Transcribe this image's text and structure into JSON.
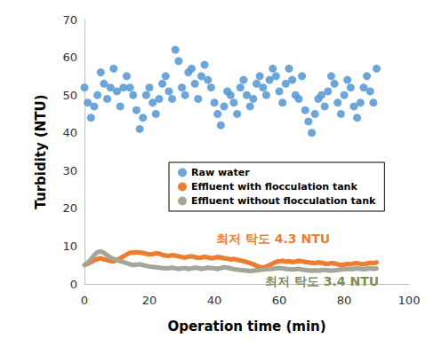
{
  "chart_data": {
    "type": "scatter",
    "x_label": "Operation time (min)",
    "y_label": "Turbidity (NTU)",
    "x": [
      0,
      1,
      2,
      3,
      4,
      5,
      6,
      7,
      8,
      9,
      10,
      11,
      12,
      13,
      14,
      15,
      16,
      17,
      18,
      19,
      20,
      21,
      22,
      23,
      24,
      25,
      26,
      27,
      28,
      29,
      30,
      31,
      32,
      33,
      34,
      35,
      36,
      37,
      38,
      39,
      40,
      41,
      42,
      43,
      44,
      45,
      46,
      47,
      48,
      49,
      50,
      51,
      52,
      53,
      54,
      55,
      56,
      57,
      58,
      59,
      60,
      61,
      62,
      63,
      64,
      65,
      66,
      67,
      68,
      69,
      70,
      71,
      72,
      73,
      74,
      75,
      76,
      77,
      78,
      79,
      80,
      81,
      82,
      83,
      84,
      85,
      86,
      87,
      88,
      89,
      90
    ],
    "series": [
      {
        "name": "Raw water",
        "type": "scatter",
        "marker": "circle",
        "color": "#5b9bd5",
        "values": [
          52,
          48,
          44,
          47,
          50,
          56,
          53,
          49,
          52,
          57,
          51,
          47,
          52,
          55,
          52,
          50,
          46,
          41,
          44,
          50,
          52,
          48,
          45,
          49,
          53,
          55,
          51,
          49,
          62,
          59,
          52,
          50,
          56,
          57,
          53,
          49,
          55,
          58,
          54,
          52,
          48,
          45,
          42,
          47,
          51,
          50,
          48,
          45,
          52,
          54,
          50,
          47,
          49,
          53,
          55,
          52,
          50,
          54,
          57,
          55,
          51,
          48,
          53,
          57,
          54,
          50,
          49,
          55,
          46,
          43,
          40,
          45,
          49,
          50,
          47,
          51,
          55,
          53,
          48,
          45,
          50,
          54,
          52,
          47,
          44,
          48,
          52,
          55,
          51,
          48,
          57
        ]
      },
      {
        "name": "Effluent with flocculation tank",
        "type": "line",
        "marker": "circle",
        "line_style": "solid",
        "color": "#ed7d31",
        "values": [
          5.0,
          5.3,
          5.8,
          6.2,
          6.6,
          6.8,
          6.5,
          6.3,
          6.1,
          6.0,
          6.3,
          6.8,
          7.3,
          7.8,
          8.2,
          8.3,
          8.4,
          8.3,
          8.2,
          8.0,
          7.8,
          7.9,
          8.1,
          8.0,
          7.7,
          7.5,
          7.4,
          7.6,
          7.5,
          7.3,
          7.1,
          7.0,
          7.2,
          7.3,
          7.1,
          6.9,
          7.0,
          7.2,
          7.0,
          6.8,
          6.9,
          7.1,
          7.0,
          6.8,
          6.7,
          6.5,
          6.6,
          6.4,
          6.2,
          6.0,
          5.8,
          5.5,
          5.2,
          4.8,
          4.5,
          4.3,
          4.6,
          5.0,
          5.4,
          5.8,
          6.0,
          6.1,
          5.9,
          6.0,
          5.8,
          5.9,
          6.1,
          6.0,
          5.8,
          5.7,
          5.6,
          5.5,
          5.7,
          5.6,
          5.4,
          5.3,
          5.5,
          5.4,
          5.2,
          5.0,
          5.1,
          5.3,
          5.2,
          5.4,
          5.5,
          5.3,
          5.2,
          5.4,
          5.6,
          5.5,
          5.7
        ]
      },
      {
        "name": "Effluent without flocculation tank",
        "type": "line",
        "marker": "circle",
        "line_style": "solid",
        "color": "#a3a698",
        "values": [
          5.0,
          5.6,
          6.5,
          7.6,
          8.4,
          8.6,
          8.2,
          7.6,
          7.0,
          6.6,
          6.3,
          6.0,
          5.8,
          5.5,
          5.2,
          5.0,
          5.1,
          5.2,
          5.0,
          4.8,
          4.6,
          4.5,
          4.4,
          4.3,
          4.2,
          4.1,
          4.2,
          4.3,
          4.1,
          4.0,
          4.1,
          4.2,
          4.0,
          4.1,
          4.3,
          4.2,
          4.0,
          4.1,
          4.3,
          4.2,
          4.1,
          4.0,
          4.2,
          4.4,
          4.3,
          4.1,
          3.9,
          3.8,
          3.7,
          3.6,
          3.5,
          3.4,
          3.5,
          3.6,
          3.7,
          3.8,
          3.9,
          4.0,
          4.0,
          4.1,
          4.2,
          4.1,
          4.0,
          3.9,
          3.8,
          3.9,
          4.0,
          3.8,
          3.7,
          3.6,
          3.5,
          3.6,
          3.5,
          3.6,
          3.7,
          3.6,
          3.5,
          3.6,
          3.7,
          3.8,
          3.9,
          4.0,
          3.9,
          4.0,
          4.1,
          4.0,
          3.9,
          4.0,
          4.1,
          4.0,
          4.1
        ]
      }
    ],
    "annotations": [
      {
        "text": "최저 탁도 4.3 NTU",
        "color": "#ed7d31"
      },
      {
        "text": "최저 탁도 3.4 NTU",
        "color": "#7f8c5c"
      }
    ],
    "xlim": [
      0,
      100
    ],
    "xticks": [
      0,
      20,
      40,
      60,
      80,
      100
    ],
    "ylim": [
      0,
      70
    ],
    "yticks": [
      0,
      10,
      20,
      30,
      40,
      50,
      60,
      70
    ],
    "grid": false,
    "legend": "center"
  }
}
